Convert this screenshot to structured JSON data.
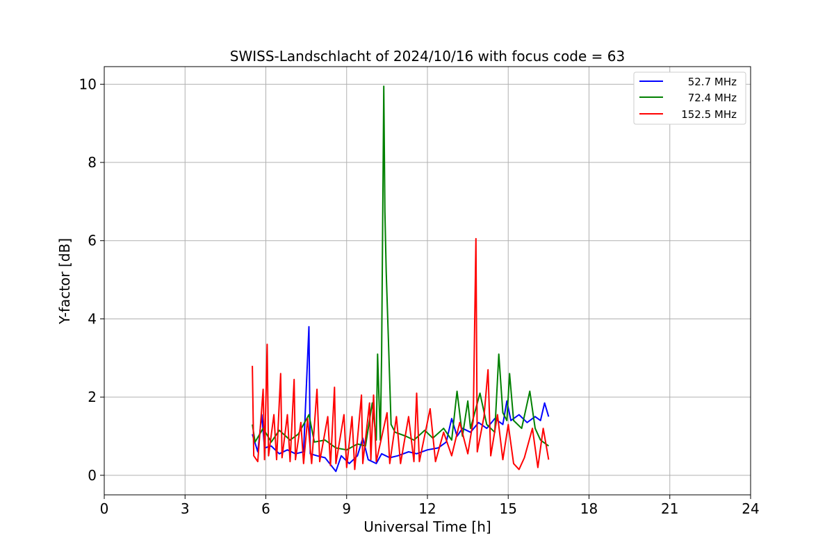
{
  "chart_data": {
    "type": "line",
    "title": "SWISS-Landschlacht of 2024/10/16 with focus code = 63",
    "xlabel": "Universal Time [h]",
    "ylabel": "Y-factor [dB]",
    "xlim": [
      0,
      24
    ],
    "ylim": [
      -0.5,
      10.45
    ],
    "xticks": [
      0,
      3,
      6,
      9,
      12,
      15,
      18,
      21,
      24
    ],
    "yticks": [
      0,
      2,
      4,
      6,
      8,
      10
    ],
    "grid": true,
    "legend_position": "top-right",
    "series": [
      {
        "name": "  52.7 MHz",
        "color": "#0000ff",
        "points": [
          [
            5.5,
            1.05
          ],
          [
            5.7,
            0.6
          ],
          [
            5.85,
            1.55
          ],
          [
            5.95,
            0.7
          ],
          [
            6.2,
            0.75
          ],
          [
            6.5,
            0.55
          ],
          [
            6.8,
            0.65
          ],
          [
            7.1,
            0.55
          ],
          [
            7.4,
            0.6
          ],
          [
            7.6,
            3.8
          ],
          [
            7.65,
            0.55
          ],
          [
            7.9,
            0.5
          ],
          [
            8.2,
            0.45
          ],
          [
            8.6,
            0.1
          ],
          [
            8.8,
            0.5
          ],
          [
            9.1,
            0.3
          ],
          [
            9.4,
            0.5
          ],
          [
            9.6,
            0.95
          ],
          [
            9.8,
            0.4
          ],
          [
            10.1,
            0.3
          ],
          [
            10.3,
            0.55
          ],
          [
            10.6,
            0.45
          ],
          [
            10.9,
            0.5
          ],
          [
            11.3,
            0.6
          ],
          [
            11.6,
            0.55
          ],
          [
            12.0,
            0.65
          ],
          [
            12.4,
            0.7
          ],
          [
            12.7,
            0.85
          ],
          [
            12.9,
            1.45
          ],
          [
            13.1,
            1.0
          ],
          [
            13.3,
            1.2
          ],
          [
            13.6,
            1.1
          ],
          [
            13.9,
            1.35
          ],
          [
            14.2,
            1.2
          ],
          [
            14.5,
            1.45
          ],
          [
            14.8,
            1.3
          ],
          [
            14.95,
            1.9
          ],
          [
            15.1,
            1.4
          ],
          [
            15.4,
            1.55
          ],
          [
            15.7,
            1.35
          ],
          [
            16.0,
            1.5
          ],
          [
            16.2,
            1.4
          ],
          [
            16.35,
            1.85
          ],
          [
            16.5,
            1.5
          ]
        ]
      },
      {
        "name": "  72.4 MHz",
        "color": "#008000",
        "points": [
          [
            5.5,
            1.3
          ],
          [
            5.6,
            0.85
          ],
          [
            5.9,
            1.2
          ],
          [
            6.2,
            0.85
          ],
          [
            6.5,
            1.15
          ],
          [
            6.9,
            0.9
          ],
          [
            7.2,
            1.05
          ],
          [
            7.6,
            1.55
          ],
          [
            7.8,
            0.85
          ],
          [
            8.2,
            0.9
          ],
          [
            8.6,
            0.7
          ],
          [
            9.0,
            0.65
          ],
          [
            9.4,
            0.8
          ],
          [
            9.7,
            0.75
          ],
          [
            9.95,
            1.85
          ],
          [
            10.1,
            0.9
          ],
          [
            10.15,
            3.1
          ],
          [
            10.25,
            0.9
          ],
          [
            10.3,
            3.1
          ],
          [
            10.38,
            9.95
          ],
          [
            10.42,
            6.75
          ],
          [
            10.47,
            5.2
          ],
          [
            10.55,
            3.5
          ],
          [
            10.65,
            1.3
          ],
          [
            10.8,
            1.1
          ],
          [
            11.2,
            1.0
          ],
          [
            11.5,
            0.9
          ],
          [
            11.9,
            1.15
          ],
          [
            12.2,
            0.95
          ],
          [
            12.6,
            1.2
          ],
          [
            12.9,
            0.9
          ],
          [
            13.1,
            2.15
          ],
          [
            13.3,
            1.0
          ],
          [
            13.5,
            1.9
          ],
          [
            13.6,
            1.2
          ],
          [
            13.95,
            2.1
          ],
          [
            14.2,
            1.3
          ],
          [
            14.5,
            1.1
          ],
          [
            14.65,
            3.1
          ],
          [
            14.8,
            1.6
          ],
          [
            14.95,
            1.4
          ],
          [
            15.05,
            2.6
          ],
          [
            15.2,
            1.4
          ],
          [
            15.5,
            1.2
          ],
          [
            15.8,
            2.15
          ],
          [
            16.0,
            1.2
          ],
          [
            16.2,
            0.9
          ],
          [
            16.5,
            0.75
          ]
        ]
      },
      {
        "name": "152.5 MHz",
        "color": "#ff0000",
        "points": [
          [
            5.5,
            2.8
          ],
          [
            5.55,
            0.5
          ],
          [
            5.7,
            0.35
          ],
          [
            5.9,
            2.2
          ],
          [
            5.95,
            0.4
          ],
          [
            6.05,
            3.35
          ],
          [
            6.1,
            0.5
          ],
          [
            6.3,
            1.55
          ],
          [
            6.4,
            0.4
          ],
          [
            6.55,
            2.6
          ],
          [
            6.6,
            0.45
          ],
          [
            6.8,
            1.55
          ],
          [
            6.9,
            0.35
          ],
          [
            7.05,
            2.45
          ],
          [
            7.1,
            0.4
          ],
          [
            7.3,
            1.35
          ],
          [
            7.4,
            0.3
          ],
          [
            7.55,
            1.45
          ],
          [
            7.7,
            0.3
          ],
          [
            7.9,
            2.2
          ],
          [
            8.0,
            0.35
          ],
          [
            8.3,
            1.5
          ],
          [
            8.4,
            0.25
          ],
          [
            8.55,
            2.25
          ],
          [
            8.6,
            0.3
          ],
          [
            8.9,
            1.55
          ],
          [
            9.0,
            0.2
          ],
          [
            9.2,
            1.5
          ],
          [
            9.3,
            0.15
          ],
          [
            9.55,
            2.05
          ],
          [
            9.6,
            0.3
          ],
          [
            9.85,
            1.85
          ],
          [
            9.9,
            0.4
          ],
          [
            10.0,
            2.05
          ],
          [
            10.1,
            0.35
          ],
          [
            10.5,
            1.6
          ],
          [
            10.6,
            0.3
          ],
          [
            10.85,
            1.5
          ],
          [
            11.0,
            0.3
          ],
          [
            11.3,
            1.5
          ],
          [
            11.5,
            0.35
          ],
          [
            11.6,
            2.1
          ],
          [
            11.7,
            0.35
          ],
          [
            12.1,
            1.7
          ],
          [
            12.3,
            0.35
          ],
          [
            12.6,
            1.1
          ],
          [
            12.9,
            0.5
          ],
          [
            13.2,
            1.35
          ],
          [
            13.5,
            0.55
          ],
          [
            13.7,
            1.4
          ],
          [
            13.8,
            6.05
          ],
          [
            13.85,
            0.6
          ],
          [
            14.1,
            1.5
          ],
          [
            14.25,
            2.7
          ],
          [
            14.35,
            0.5
          ],
          [
            14.6,
            1.55
          ],
          [
            14.8,
            0.4
          ],
          [
            15.0,
            1.3
          ],
          [
            15.2,
            0.3
          ],
          [
            15.4,
            0.15
          ],
          [
            15.6,
            0.45
          ],
          [
            15.9,
            1.2
          ],
          [
            16.1,
            0.2
          ],
          [
            16.3,
            1.2
          ],
          [
            16.5,
            0.4
          ]
        ]
      }
    ]
  }
}
